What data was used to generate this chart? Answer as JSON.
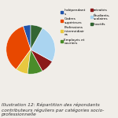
{
  "values": [
    5,
    35,
    8,
    10,
    9,
    25,
    8
  ],
  "colors": [
    "#2255aa",
    "#e84800",
    "#e8c840",
    "#4a8c2a",
    "#8b1a1a",
    "#aad4f0",
    "#336633"
  ],
  "legend_labels_col1": [
    "Indépendant\ns",
    "Cadres\nsupérieurs",
    "Professions\nintermédiair\nes",
    "Employés et\nouvriers"
  ],
  "legend_colors_col1": [
    "#2255aa",
    "#e84800",
    "#e8c840",
    "#4a8c2a"
  ],
  "legend_labels_col2": [
    "retraités",
    "Étudiants,\nscolaires",
    "Inactifs"
  ],
  "legend_colors_col2": [
    "#8b1a1a",
    "#aad4f0",
    "#336633"
  ],
  "startangle": 90,
  "caption": "Illustration 12: Répartition des répondants\ncontributeurs réguliers par catégories socio-\nprofessionnelle",
  "caption_fontsize": 4.2,
  "bg_color": "#f0ede8"
}
